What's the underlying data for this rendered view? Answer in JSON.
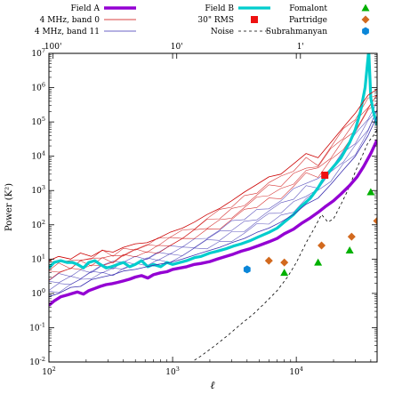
{
  "chart_data": {
    "type": "line",
    "xlabel": "ℓ",
    "ylabel": "Power (K²)",
    "xscale": "log",
    "yscale": "log",
    "xlim": [
      100,
      45000
    ],
    "ylim": [
      0.01,
      10000000
    ],
    "x_ticks": [
      {
        "value": 100,
        "base": "10",
        "exp": "2"
      },
      {
        "value": 1000,
        "base": "10",
        "exp": "3"
      },
      {
        "value": 10000,
        "base": "10",
        "exp": "4"
      }
    ],
    "y_ticks": [
      {
        "value": 0.01,
        "base": "10",
        "exp": "-2"
      },
      {
        "value": 0.1,
        "base": "10",
        "exp": "-1"
      },
      {
        "value": 1,
        "base": "10",
        "exp": "0"
      },
      {
        "value": 10,
        "base": "10",
        "exp": "1"
      },
      {
        "value": 100,
        "base": "10",
        "exp": "2"
      },
      {
        "value": 1000,
        "base": "10",
        "exp": "3"
      },
      {
        "value": 10000,
        "base": "10",
        "exp": "4"
      },
      {
        "value": 100000,
        "base": "10",
        "exp": "5"
      },
      {
        "value": 1000000,
        "base": "10",
        "exp": "6"
      },
      {
        "value": 10000000,
        "base": "10",
        "exp": "7"
      }
    ],
    "top_axis_labels": [
      {
        "text": "100'",
        "ell": 108
      },
      {
        "text": "10'",
        "ell": 1080
      },
      {
        "text": "1'",
        "ell": 10800
      }
    ],
    "legend": {
      "columns": [
        [
          {
            "label": "Field A",
            "key": "field_a"
          },
          {
            "label": "4 MHz, band 0",
            "key": "band0"
          },
          {
            "label": "4 MHz, band 11",
            "key": "band11"
          }
        ],
        [
          {
            "label": "Field B",
            "key": "field_b"
          },
          {
            "label": "30\" RMS",
            "key": "rms30"
          },
          {
            "label": "Noise",
            "key": "noise"
          }
        ],
        [
          {
            "label": "Fomalont",
            "key": "fomalont"
          },
          {
            "label": "Partridge",
            "key": "partridge"
          },
          {
            "label": "Subrahmanyan",
            "key": "subrahmanyan"
          }
        ]
      ]
    },
    "colors": {
      "field_a": "#9400d3",
      "field_b": "#00cdcd",
      "band0": "#cc0000",
      "band11": "#3a2fb0",
      "rms30": "#ee1111",
      "noise": "#000000",
      "fomalont": "#00b000",
      "partridge": "#d2691e",
      "subrahmanyan": "#0a86d8"
    },
    "series": [
      {
        "name": "Field A",
        "key": "field_a",
        "x": [
          100,
          110,
          125,
          140,
          155,
          170,
          190,
          210,
          235,
          260,
          290,
          320,
          360,
          400,
          450,
          500,
          560,
          630,
          700,
          800,
          900,
          1000,
          1150,
          1300,
          1500,
          1700,
          2000,
          2300,
          2700,
          3100,
          3600,
          4200,
          5000,
          6000,
          7000,
          8000,
          9500,
          11000,
          13000,
          15000,
          17000,
          20000,
          23000,
          27000,
          31000,
          35000,
          40000,
          45000
        ],
        "y": [
          0.45,
          0.6,
          0.8,
          0.9,
          1.0,
          1.1,
          0.95,
          1.2,
          1.4,
          1.6,
          1.8,
          1.9,
          2.1,
          2.3,
          2.6,
          3.0,
          3.3,
          2.8,
          3.5,
          4.0,
          4.3,
          5.0,
          5.5,
          6.0,
          7.0,
          7.5,
          8.5,
          10,
          12,
          14,
          17,
          20,
          25,
          32,
          40,
          55,
          75,
          110,
          160,
          230,
          330,
          500,
          800,
          1400,
          2500,
          5000,
          12000,
          30000
        ]
      },
      {
        "name": "Field B",
        "key": "field_b",
        "x": [
          100,
          110,
          125,
          140,
          155,
          170,
          190,
          210,
          235,
          260,
          290,
          320,
          360,
          400,
          450,
          500,
          560,
          630,
          700,
          800,
          900,
          1000,
          1150,
          1300,
          1500,
          1700,
          2000,
          2300,
          2700,
          3100,
          3600,
          4200,
          5000,
          6000,
          7000,
          8000,
          9500,
          11000,
          13000,
          15000,
          17000,
          20000,
          23000,
          27000,
          30000,
          33000,
          36000,
          38500,
          40000,
          42000,
          45000
        ],
        "y": [
          5.5,
          8,
          9,
          8,
          8,
          7,
          5.5,
          8,
          9,
          7,
          5.5,
          6,
          7,
          8,
          6,
          7,
          9,
          6,
          7,
          6,
          8,
          7,
          8,
          9,
          11,
          12,
          15,
          17,
          20,
          24,
          28,
          34,
          45,
          60,
          80,
          120,
          200,
          350,
          600,
          1200,
          2500,
          5000,
          9000,
          25000,
          60000,
          200000,
          1000000,
          12000000,
          500000,
          200000,
          80000
        ]
      },
      {
        "name": "4 MHz, band 0",
        "key": "band0",
        "x": [
          100,
          120,
          150,
          180,
          220,
          270,
          330,
          400,
          500,
          620,
          760,
          950,
          1200,
          1500,
          1900,
          2400,
          3000,
          3800,
          4800,
          6000,
          7500,
          9500,
          12000,
          15000,
          19000,
          24000,
          30000,
          38000,
          45000
        ],
        "y": [
          9,
          12,
          10,
          15,
          12,
          18,
          16,
          22,
          28,
          30,
          40,
          60,
          80,
          120,
          200,
          300,
          500,
          900,
          1500,
          2500,
          3000,
          6000,
          12000,
          9000,
          25000,
          70000,
          180000,
          600000,
          900000
        ]
      },
      {
        "name": "4 MHz, band 11",
        "key": "band11",
        "x": [
          100,
          120,
          150,
          180,
          220,
          270,
          330,
          400,
          500,
          620,
          760,
          950,
          1200,
          1500,
          1900,
          2400,
          3000,
          3800,
          4800,
          6000,
          7500,
          9500,
          12000,
          15000,
          19000,
          24000,
          30000,
          38000,
          45000
        ],
        "y": [
          0.8,
          1.0,
          1.5,
          1.6,
          2.5,
          3,
          3.5,
          4.5,
          5,
          6,
          7,
          8,
          10,
          13,
          17,
          22,
          30,
          40,
          60,
          80,
          120,
          200,
          400,
          600,
          1500,
          4000,
          10000,
          40000,
          150000
        ]
      }
    ],
    "bundle": {
      "count": 10,
      "x": [
        100,
        120,
        150,
        180,
        220,
        270,
        330,
        400,
        500,
        620,
        760,
        950,
        1200,
        1500,
        1900,
        2400,
        3000,
        3800,
        4800,
        6000,
        7500,
        9500,
        12000,
        15000,
        19000,
        24000,
        30000,
        38000,
        45000
      ],
      "y_low": [
        0.8,
        1.0,
        1.5,
        1.6,
        2.5,
        3,
        3.5,
        4.5,
        5,
        6,
        7,
        8,
        10,
        13,
        17,
        22,
        30,
        40,
        60,
        80,
        120,
        200,
        400,
        600,
        1500,
        4000,
        10000,
        40000,
        150000
      ],
      "y_high": [
        9,
        12,
        10,
        15,
        12,
        18,
        16,
        22,
        28,
        30,
        40,
        60,
        80,
        120,
        200,
        300,
        500,
        900,
        1500,
        2500,
        3000,
        6000,
        12000,
        9000,
        25000,
        70000,
        180000,
        600000,
        900000
      ]
    },
    "noise": {
      "name": "Noise",
      "key": "noise",
      "x": [
        1000,
        1300,
        1700,
        2200,
        2800,
        3500,
        4500,
        5500,
        7000,
        8500,
        10000,
        12000,
        14000,
        16000,
        18000,
        20000,
        23000,
        26000,
        30000,
        34000,
        38000,
        42000,
        45000
      ],
      "y": [
        0.004,
        0.008,
        0.015,
        0.03,
        0.06,
        0.12,
        0.25,
        0.5,
        1.2,
        3,
        8,
        30,
        80,
        200,
        120,
        150,
        400,
        1000,
        3500,
        10000,
        25000,
        40000,
        60000
      ]
    },
    "points": [
      {
        "name": "30\" RMS",
        "key": "rms30",
        "shape": "square",
        "x": [
          17000
        ],
        "y": [
          2800
        ]
      },
      {
        "name": "Fomalont",
        "key": "fomalont",
        "shape": "triangle",
        "x": [
          8000,
          15000,
          27000,
          40000
        ],
        "y": [
          4,
          8,
          18,
          900
        ]
      },
      {
        "name": "Partridge",
        "key": "partridge",
        "shape": "diamond",
        "x": [
          6000,
          8000,
          16000,
          28000,
          45000
        ],
        "y": [
          9,
          8,
          25,
          45,
          130
        ]
      },
      {
        "name": "Subrahmanyan",
        "key": "subrahmanyan",
        "shape": "hexagon",
        "x": [
          4000
        ],
        "y": [
          5
        ]
      }
    ]
  }
}
